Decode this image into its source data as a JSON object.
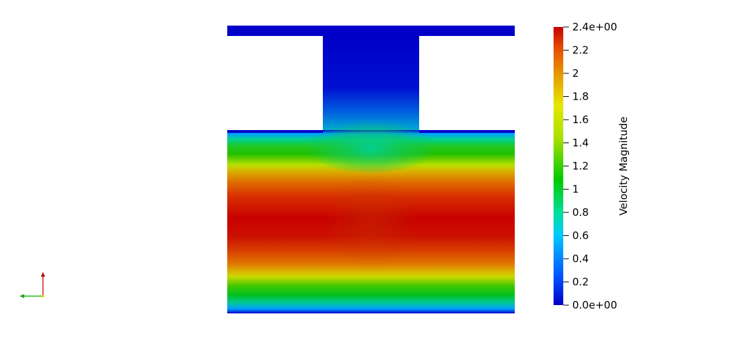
{
  "colorbar": {
    "title": "Velocity Magnitude",
    "range": [
      0,
      2.4
    ],
    "tick_labels": [
      "2.4e+00",
      "2.2",
      "2",
      "1.8",
      "1.6",
      "1.4",
      "1.2",
      "1",
      "0.8",
      "0.6",
      "0.4",
      "0.2",
      "0.0e+00"
    ],
    "tick_values": [
      2.4,
      2.2,
      2.0,
      1.8,
      1.6,
      1.4,
      1.2,
      1.0,
      0.8,
      0.6,
      0.4,
      0.2,
      0.0
    ],
    "colormap": [
      "#0000c8",
      "#0050ff",
      "#00c8ff",
      "#00e0a0",
      "#00c800",
      "#a8e000",
      "#e6e600",
      "#e6a000",
      "#e65000",
      "#c80000"
    ]
  },
  "axes_triad": {
    "x_color": "#22bb22",
    "y_color": "#cc2222",
    "z_color": "#dddd00"
  }
}
